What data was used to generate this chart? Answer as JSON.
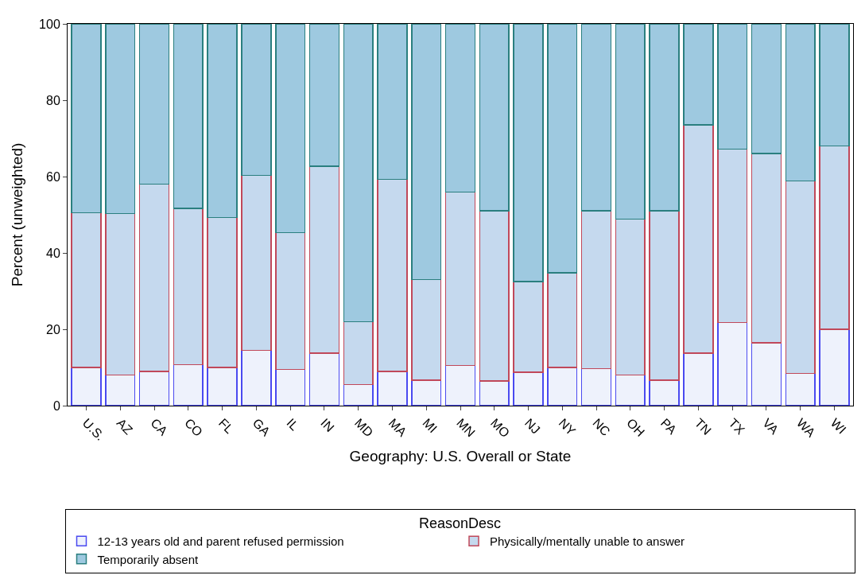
{
  "chart_data": {
    "type": "bar",
    "stacked": true,
    "xlabel": "Geography: U.S. Overall or State",
    "ylabel": "Percent (unweighted)",
    "legend_title": "ReasonDesc",
    "legend": "bottom",
    "categories": [
      "U.S.",
      "AZ",
      "CA",
      "CO",
      "FL",
      "GA",
      "IL",
      "IN",
      "MD",
      "MA",
      "MI",
      "MN",
      "MO",
      "NJ",
      "NY",
      "NC",
      "OH",
      "PA",
      "TN",
      "TX",
      "VA",
      "WA",
      "WI"
    ],
    "ylim": [
      0,
      100
    ],
    "yticks": [
      0,
      20,
      40,
      60,
      80,
      100
    ],
    "series": [
      {
        "name": "12-13 years old and parent refused permission",
        "color": "#eef2fc",
        "values": [
          10,
          8,
          9,
          10.7,
          10,
          14.5,
          9.5,
          13.8,
          5.5,
          9,
          6.7,
          10.5,
          6.5,
          8.7,
          10,
          9.7,
          8,
          6.7,
          13.8,
          21.8,
          16.5,
          8.4,
          20
        ]
      },
      {
        "name": "Physically/mentally unable to answer",
        "color": "#c5d9ee",
        "values": [
          40.5,
          42.3,
          49,
          41,
          39.3,
          45.8,
          35.8,
          48.9,
          16.5,
          50.3,
          26.3,
          45.4,
          44.5,
          23.8,
          24.8,
          41.3,
          40.9,
          44.3,
          59.7,
          45.4,
          49.5,
          50.5,
          48
        ]
      },
      {
        "name": "Temporarily absent",
        "color": "#9ec9e0",
        "values": [
          49.5,
          49.7,
          42,
          48.3,
          50.7,
          39.7,
          54.7,
          37.3,
          78,
          40.7,
          67,
          44.1,
          49,
          67.5,
          65.2,
          49,
          51.1,
          49,
          26.5,
          32.8,
          34,
          41.1,
          32
        ]
      }
    ]
  }
}
